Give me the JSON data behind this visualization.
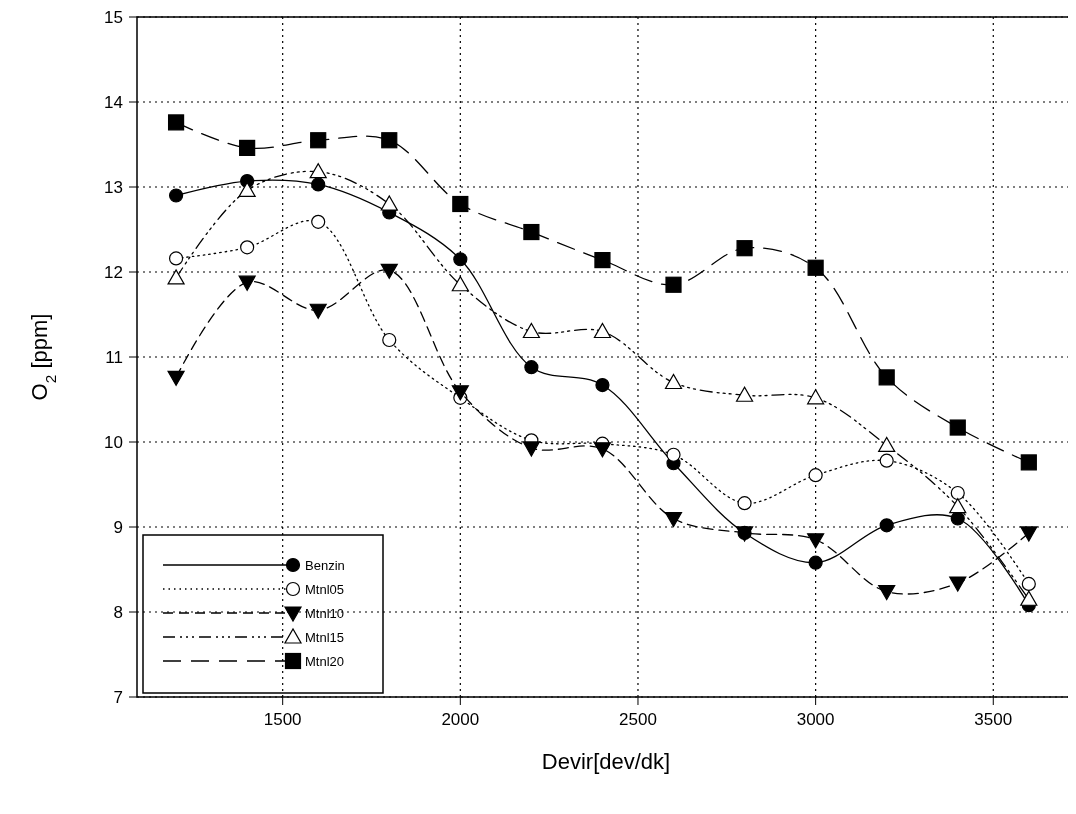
{
  "chart_data": {
    "type": "line",
    "xlabel": "Devir[dev/dk]",
    "ylabel": "O$_{2}$ [ppm]",
    "x": [
      1200,
      1400,
      1600,
      1800,
      2000,
      2200,
      2400,
      2600,
      2800,
      3000,
      3200,
      3400,
      3600
    ],
    "xlim": [
      1090,
      3730
    ],
    "xticks": [
      1500,
      2000,
      2500,
      3000,
      3500
    ],
    "ylim": [
      7,
      15
    ],
    "yticks": [
      7,
      8,
      9,
      10,
      11,
      12,
      13,
      14,
      15
    ],
    "grid": true,
    "legend": "bottom left",
    "series": [
      {
        "name": "Benzin",
        "color": "#000000",
        "marker": "circle",
        "line_style": "solid",
        "values": [
          12.9,
          13.07,
          13.03,
          12.7,
          12.15,
          10.88,
          10.67,
          9.75,
          8.93,
          8.58,
          9.02,
          9.1,
          8.08
        ]
      },
      {
        "name": "Mtnl05",
        "color": "#000000",
        "marker": "circle",
        "line_style": "dotted",
        "values": [
          12.16,
          12.29,
          12.59,
          11.2,
          10.52,
          10.02,
          9.98,
          9.85,
          9.28,
          9.61,
          9.78,
          9.4,
          8.33
        ]
      },
      {
        "name": "Mtnl10",
        "color": "#000000",
        "marker": "triangle",
        "line_style": "dashed",
        "values": [
          10.76,
          11.88,
          11.55,
          12.02,
          10.59,
          9.93,
          9.92,
          9.1,
          8.93,
          8.85,
          8.24,
          8.34,
          8.93
        ]
      },
      {
        "name": "Mtnl15",
        "color": "#000000",
        "marker": "triangle",
        "line_style": "dashed",
        "values": [
          11.93,
          12.96,
          13.18,
          12.8,
          11.85,
          11.3,
          11.3,
          10.7,
          10.55,
          10.52,
          9.96,
          9.24,
          8.15
        ]
      },
      {
        "name": "Mtnl20",
        "color": "#000000",
        "marker": "square",
        "line_style": "dashed",
        "values": [
          13.76,
          13.46,
          13.55,
          13.55,
          12.8,
          12.47,
          12.14,
          11.85,
          12.28,
          12.05,
          10.76,
          10.17,
          9.76
        ]
      }
    ]
  }
}
